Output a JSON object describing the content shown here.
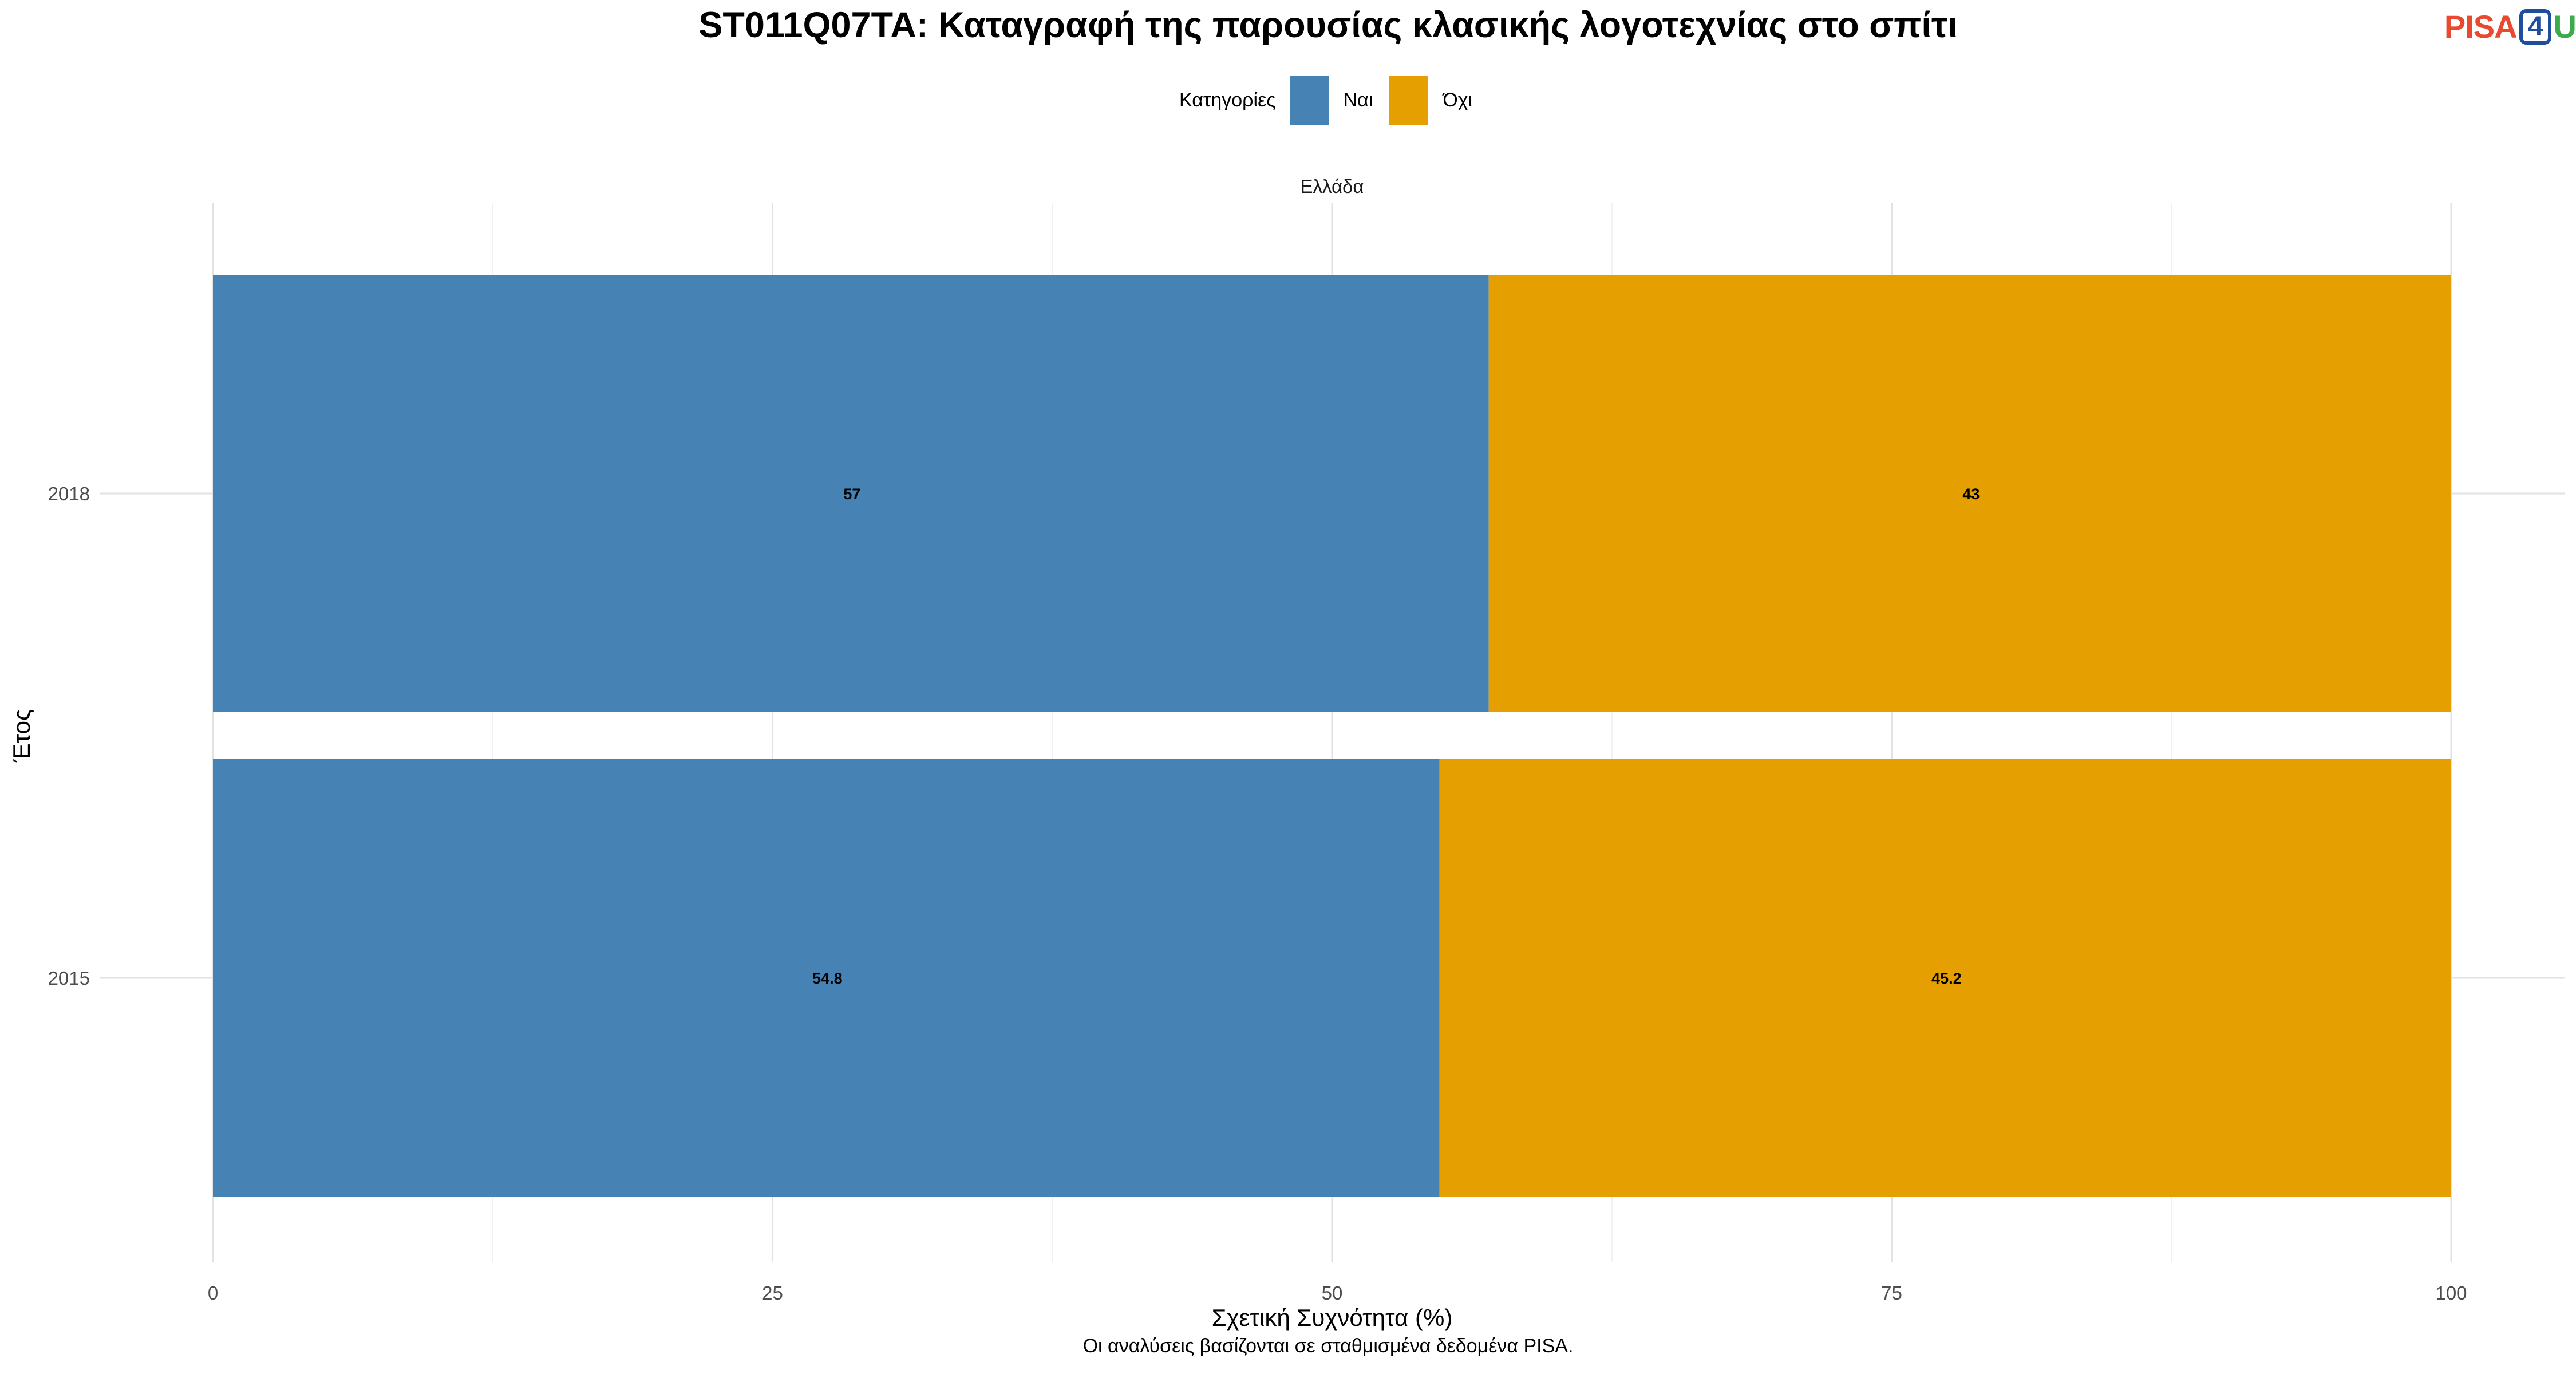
{
  "chart_data": {
    "type": "bar",
    "orientation": "horizontal",
    "stacked": true,
    "title": "ST011Q07TA: Καταγραφή της παρουσίας κλασικής λογοτεχνίας στο σπίτι",
    "facet_label": "Ελλάδα",
    "legend_title": "Κατηγορίες",
    "legend_position": "top",
    "categories": [
      "2018",
      "2015"
    ],
    "series": [
      {
        "name": "Ναι",
        "color": "#4682b4",
        "values": [
          57,
          54.8
        ]
      },
      {
        "name": "Όχι",
        "color": "#e59f00",
        "values": [
          43,
          45.2
        ]
      }
    ],
    "data_labels": [
      [
        "57",
        "43"
      ],
      [
        "54.8",
        "45.2"
      ]
    ],
    "xlabel": "Σχετική Συχνότητα (%)",
    "ylabel": "Έτος",
    "xlim": [
      0,
      100
    ],
    "xticks": [
      0,
      25,
      50,
      75,
      100
    ],
    "grid": true,
    "caption": "Οι αναλύσεις βασίζονται σε σταθμισμένα δεδομένα PISA."
  },
  "logo": {
    "part1": "PISA",
    "part2": "4",
    "part3": "U"
  }
}
